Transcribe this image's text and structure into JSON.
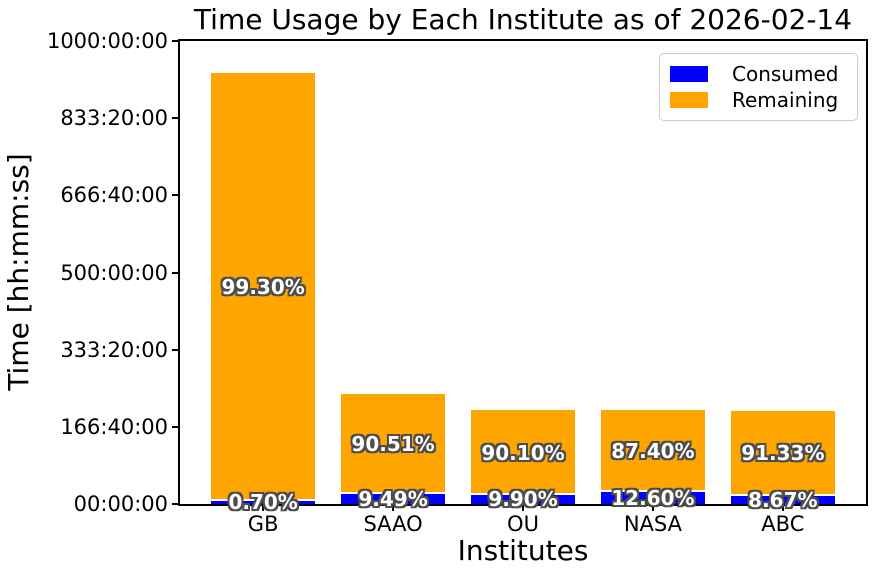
{
  "chart_data": {
    "type": "bar",
    "stacked": true,
    "title": "Time Usage by Each Institute as of 2026-02-14",
    "xlabel": "Institutes",
    "ylabel": "Time [hh:mm:ss]",
    "categories": [
      "GB",
      "SAAO",
      "OU",
      "NASA",
      "ABC"
    ],
    "totals_hours_est": [
      932,
      238,
      202,
      203,
      202
    ],
    "series": [
      {
        "name": "Consumed",
        "color": "#0000ff",
        "percent": [
          0.7,
          9.49,
          9.9,
          12.6,
          8.67
        ],
        "labels": [
          "0.70%",
          "9.49%",
          "9.90%",
          "12.60%",
          "8.67%"
        ]
      },
      {
        "name": "Remaining",
        "color": "#ffa500",
        "percent": [
          99.3,
          90.51,
          90.1,
          87.4,
          91.33
        ],
        "labels": [
          "99.30%",
          "90.51%",
          "90.10%",
          "87.40%",
          "91.33%"
        ]
      }
    ],
    "y_axis": {
      "ylim_hours": [
        0,
        1000
      ],
      "tick_hours": [
        0,
        166.6667,
        333.3333,
        500,
        666.6667,
        833.3333,
        1000
      ],
      "tick_labels": [
        "00:00:00",
        "166:40:00",
        "333:20:00",
        "500:00:00",
        "666:40:00",
        "833:20:00",
        "1000:00:00"
      ]
    },
    "grid": false,
    "legend_position": "upper right",
    "bar_label_text_color": "#ffffff",
    "axis_color": "#000000",
    "background_color": "#ffffff"
  }
}
